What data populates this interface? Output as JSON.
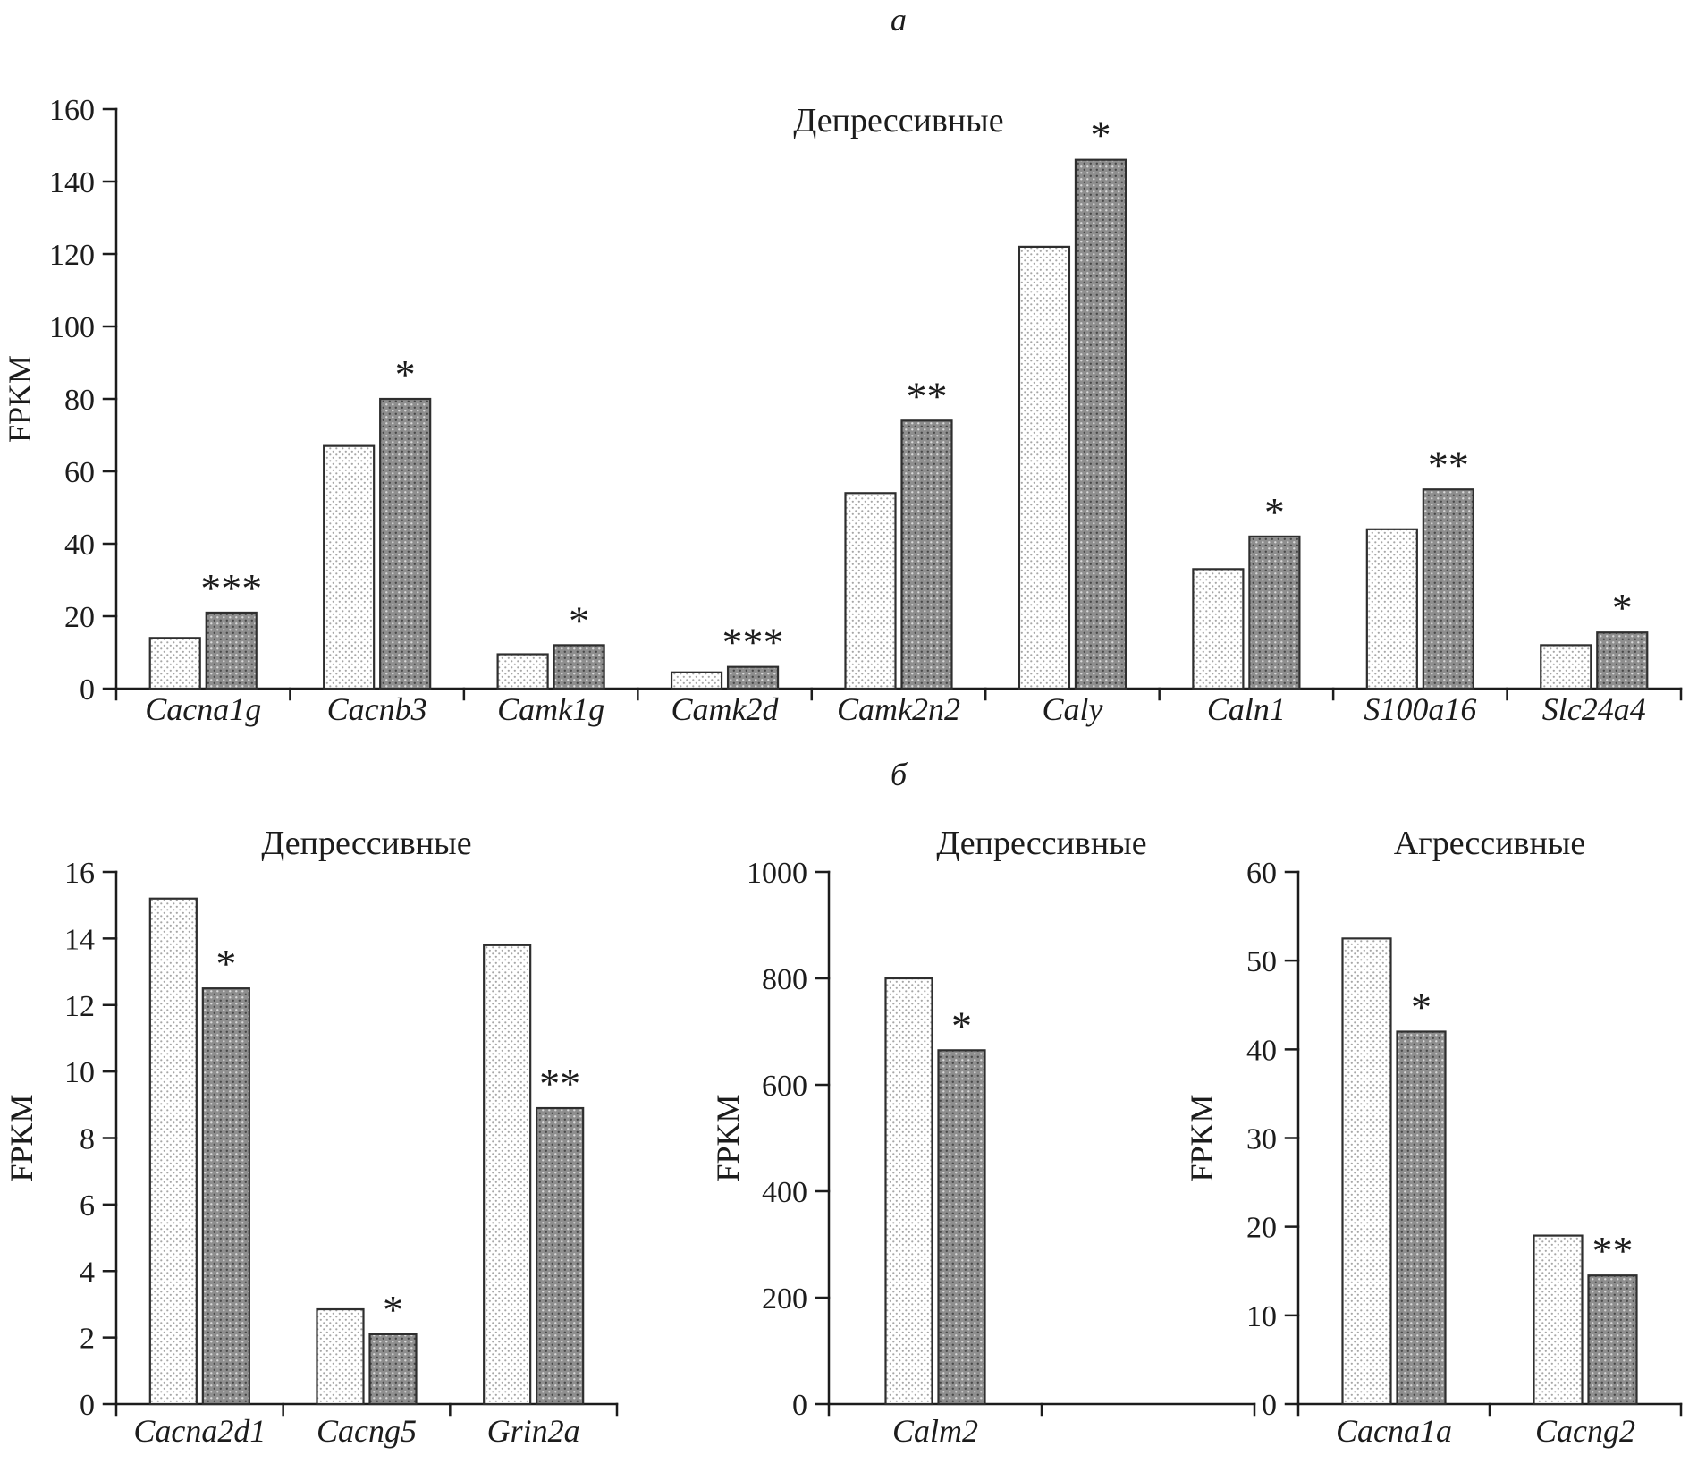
{
  "figure": {
    "panel_a_label": "а",
    "panel_b_label": "б"
  },
  "colors": {
    "text_and_axes": "#1c1c1c",
    "bar_outline": "#2e2e2e",
    "light_bar_fill": "#ffffff",
    "light_bar_dots": "#a6a6a6",
    "dark_bar_fill": "#8e8e8e",
    "dark_bar_dots": "#474747",
    "dark_bar_highlight_dots": "#d9d9d9"
  },
  "chart_data": [
    {
      "type": "bar",
      "panel": "а",
      "title": "Депрессивные",
      "xlabel": "",
      "ylabel": "FPKM",
      "ylim": [
        0,
        160
      ],
      "ytick_step": 20,
      "grid": false,
      "legend_position": "none",
      "categories": [
        "Cacna1g",
        "Cacnb3",
        "Camk1g",
        "Camk2d",
        "Camk2n2",
        "Caly",
        "Caln1",
        "S100a16",
        "Slc24a4"
      ],
      "series": [
        {
          "name": "light-stippled-bars",
          "values": [
            14,
            67,
            9.5,
            4.5,
            54,
            122,
            33,
            44,
            12
          ]
        },
        {
          "name": "dark-stippled-bars",
          "values": [
            21,
            80,
            12,
            6,
            74,
            146,
            42,
            55,
            15.5
          ]
        }
      ],
      "significance": [
        "***",
        "*",
        "*",
        "***",
        "**",
        "*",
        "*",
        "**",
        "*"
      ]
    },
    {
      "type": "bar",
      "panel": "б",
      "title": "Депрессивные",
      "xlabel": "",
      "ylabel": "FPKM",
      "ylim": [
        0,
        16
      ],
      "ytick_step": 2,
      "grid": false,
      "legend_position": "none",
      "categories": [
        "Cacna2d1",
        "Cacng5",
        "Grin2a"
      ],
      "series": [
        {
          "name": "light-stippled-bars",
          "values": [
            15.2,
            2.85,
            13.8
          ]
        },
        {
          "name": "dark-stippled-bars",
          "values": [
            12.5,
            2.1,
            8.9
          ]
        }
      ],
      "significance": [
        "*",
        "*",
        "**"
      ]
    },
    {
      "type": "bar",
      "panel": "б",
      "title": "Депрессивные",
      "xlabel": "",
      "ylabel": "FPKM",
      "ylim": [
        0,
        1000
      ],
      "ytick_step": 200,
      "grid": false,
      "legend_position": "none",
      "categories": [
        "Calm2"
      ],
      "series": [
        {
          "name": "light-stippled-bars",
          "values": [
            800
          ]
        },
        {
          "name": "dark-stippled-bars",
          "values": [
            665
          ]
        }
      ],
      "significance": [
        "*"
      ]
    },
    {
      "type": "bar",
      "panel": "б",
      "title": "Агрессивные",
      "xlabel": "",
      "ylabel": "FPKM",
      "ylim": [
        0,
        60
      ],
      "ytick_step": 10,
      "grid": false,
      "legend_position": "none",
      "categories": [
        "Cacna1a",
        "Cacng2"
      ],
      "series": [
        {
          "name": "light-stippled-bars",
          "values": [
            52.5,
            19
          ]
        },
        {
          "name": "dark-stippled-bars",
          "values": [
            42,
            14.5
          ]
        }
      ],
      "significance": [
        "*",
        "**"
      ]
    }
  ]
}
